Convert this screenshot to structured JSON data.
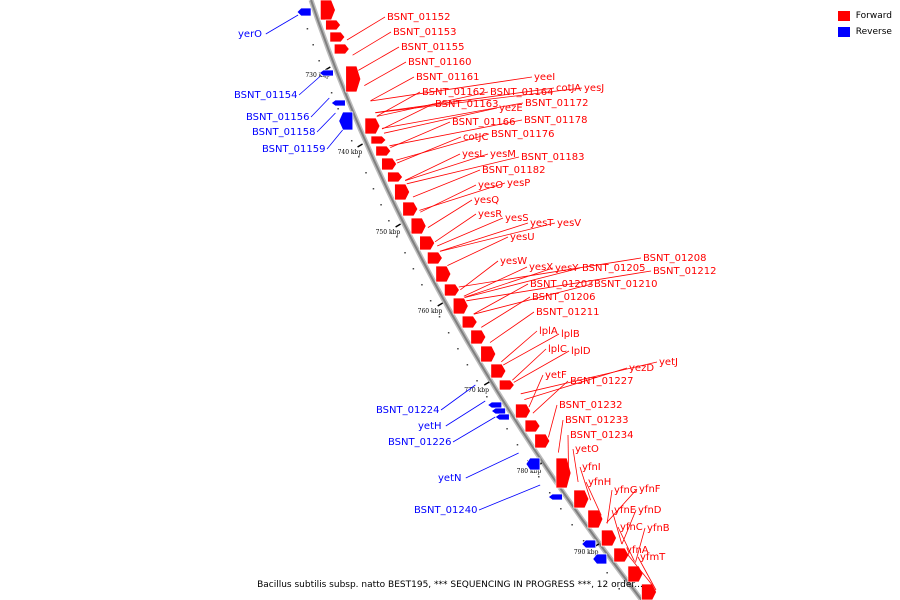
{
  "legend": [
    {
      "label": "Forward",
      "color": "#ff0000"
    },
    {
      "label": "Reverse",
      "color": "#0000ff"
    }
  ],
  "caption": "Bacillus subtilis subsp. natto BEST195, *** SEQUENCING IN PROGRESS ***, 12 order...",
  "ticks": [
    "730 kbp",
    "740 kbp",
    "750 kbp",
    "760 kbp",
    "770 kbp",
    "780 kbp",
    "790 kbp"
  ],
  "forward_labels": [
    "BSNT_01152",
    "BSNT_01153",
    "BSNT_01155",
    "BSNT_01160",
    "BSNT_01161",
    "yeeI",
    "BSNT_01162",
    "BSNT_01164",
    "cotJA",
    "yesJ",
    "BSNT_01163",
    "yezE",
    "BSNT_01172",
    "BSNT_01166",
    "BSNT_01178",
    "cotJC",
    "BSNT_01176",
    "yesL",
    "yesM",
    "BSNT_01183",
    "BSNT_01182",
    "yesO",
    "yesP",
    "yesQ",
    "yesR",
    "yesS",
    "yesT",
    "yesV",
    "yesU",
    "yesW",
    "BSNT_01208",
    "yesX",
    "yesY",
    "BSNT_01205",
    "BSNT_01212",
    "BSNT_01203",
    "BSNT_01210",
    "BSNT_01206",
    "BSNT_01211",
    "lplA",
    "lplB",
    "lplC",
    "lplD",
    "yezD",
    "yetJ",
    "yetF",
    "BSNT_01227",
    "BSNT_01232",
    "BSNT_01233",
    "BSNT_01234",
    "yetO",
    "yfnI",
    "yfnH",
    "yfnG",
    "yfnF",
    "yfnE",
    "yfnD",
    "yfnC",
    "yfnB",
    "yfnA",
    "yfmT"
  ],
  "reverse_labels": [
    "yerO",
    "BSNT_01154",
    "BSNT_01156",
    "BSNT_01158",
    "BSNT_01159",
    "BSNT_01224",
    "yetH",
    "BSNT_01226",
    "yetN",
    "BSNT_01240"
  ]
}
